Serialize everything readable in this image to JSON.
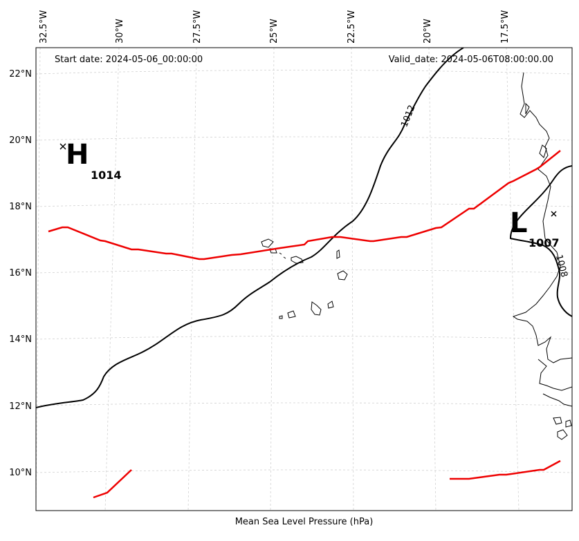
{
  "map": {
    "start_date": "Start date: 2024-05-06_00:00:00",
    "valid_date": "Valid_date: 2024-05-06T08:00:00.00",
    "xlabel": "Mean Sea Level Pressure (hPa)",
    "lon_labels": [
      "32.5°W",
      "30°W",
      "27.5°W",
      "25°W",
      "22.5°W",
      "20°W",
      "17.5°W"
    ],
    "lat_labels": [
      "22°N",
      "20°N",
      "18°N",
      "16°N",
      "14°N",
      "12°N",
      "10°N"
    ],
    "high": {
      "letter": "H",
      "value": "1014"
    },
    "low": {
      "letter": "L",
      "value": "1007"
    },
    "isobar_labels": [
      "1012",
      "1008"
    ],
    "colors": {
      "isobar": "#000000",
      "front_line": "#ee0000",
      "grid": "#cccccc",
      "coastline": "#000000"
    }
  }
}
